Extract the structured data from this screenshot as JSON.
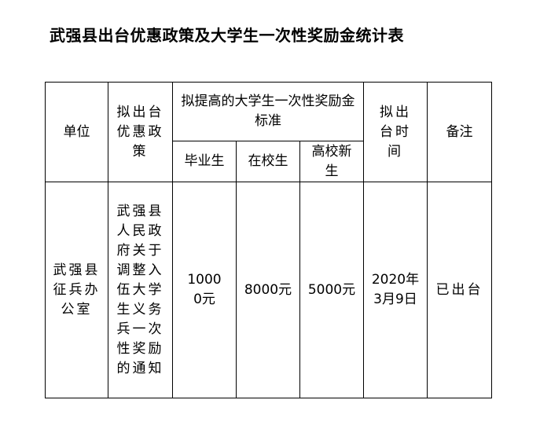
{
  "title": "武强县出台优惠政策及大学生一次性奖励金统计表",
  "headers": {
    "unit": "单位",
    "policy": "拟出台优惠政策",
    "standard": "拟提高的大学生一次性奖励金标准",
    "graduate": "毕业生",
    "student": "在校生",
    "freshman": "高校新生",
    "time": "拟出台时间",
    "remark": "备注"
  },
  "row": {
    "unit": "武强县征兵办公室",
    "policy": "武强县人民政府关于调整入伍大学生义务兵一次性奖励的通知",
    "graduate": "10000元",
    "student": "8000元",
    "freshman": "5000元",
    "time": "2020年3月9日",
    "remark": "已出台"
  }
}
